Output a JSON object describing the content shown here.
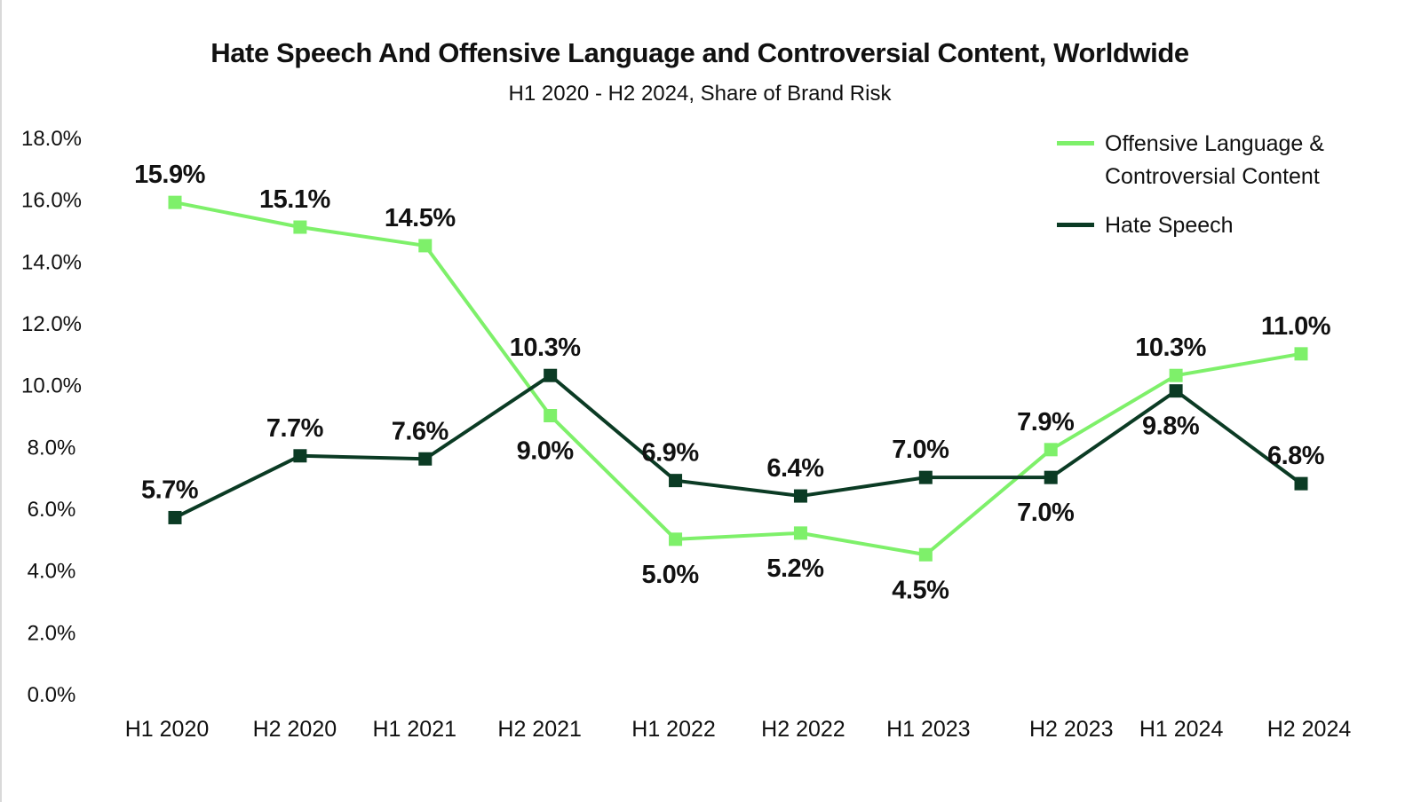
{
  "chart_data": {
    "type": "line",
    "title": "Hate Speech And Offensive Language and Controversial Content, Worldwide",
    "subtitle": "H1 2020 - H2 2024, Share of Brand Risk",
    "xlabel": "",
    "ylabel": "",
    "categories": [
      "H1 2020",
      "H2 2020",
      "H1 2021",
      "H2 2021",
      "H1 2022",
      "H2 2022",
      "H1 2023",
      "H2 2023",
      "H1 2024",
      "H2 2024"
    ],
    "ylim": [
      0,
      18
    ],
    "yticks": [
      0,
      2,
      4,
      6,
      8,
      10,
      12,
      14,
      16,
      18
    ],
    "ytick_labels": [
      "0.0%",
      "2.0%",
      "4.0%",
      "6.0%",
      "8.0%",
      "10.0%",
      "12.0%",
      "14.0%",
      "16.0%",
      "18.0%"
    ],
    "grid": false,
    "legend_position": "top-right",
    "series": [
      {
        "name": "Offensive Language & Controversial Content",
        "color": "#7EF06A",
        "marker": "square",
        "values": [
          15.9,
          15.1,
          14.5,
          9.0,
          5.0,
          5.2,
          4.5,
          7.9,
          10.3,
          11.0
        ],
        "labels": [
          "15.9%",
          "15.1%",
          "14.5%",
          "9.0%",
          "5.0%",
          "5.2%",
          "4.5%",
          "7.9%",
          "10.3%",
          "11.0%"
        ],
        "label_positions": [
          "above",
          "above",
          "above",
          "below",
          "below",
          "below",
          "below",
          "above",
          "above",
          "above"
        ]
      },
      {
        "name": "Hate Speech",
        "color": "#0B3B24",
        "marker": "square",
        "values": [
          5.7,
          7.7,
          7.6,
          10.3,
          6.9,
          6.4,
          7.0,
          7.0,
          9.8,
          6.8
        ],
        "labels": [
          "5.7%",
          "7.7%",
          "7.6%",
          "10.3%",
          "6.9%",
          "6.4%",
          "7.0%",
          "7.0%",
          "9.8%",
          "6.8%"
        ],
        "label_positions": [
          "above",
          "above",
          "above",
          "above",
          "above",
          "above",
          "above",
          "below",
          "below",
          "above"
        ]
      }
    ]
  },
  "legend": {
    "items": [
      {
        "label": "Offensive Language & Controversial Content",
        "color": "#7EF06A"
      },
      {
        "label": "Hate Speech",
        "color": "#0B3B24"
      }
    ]
  }
}
